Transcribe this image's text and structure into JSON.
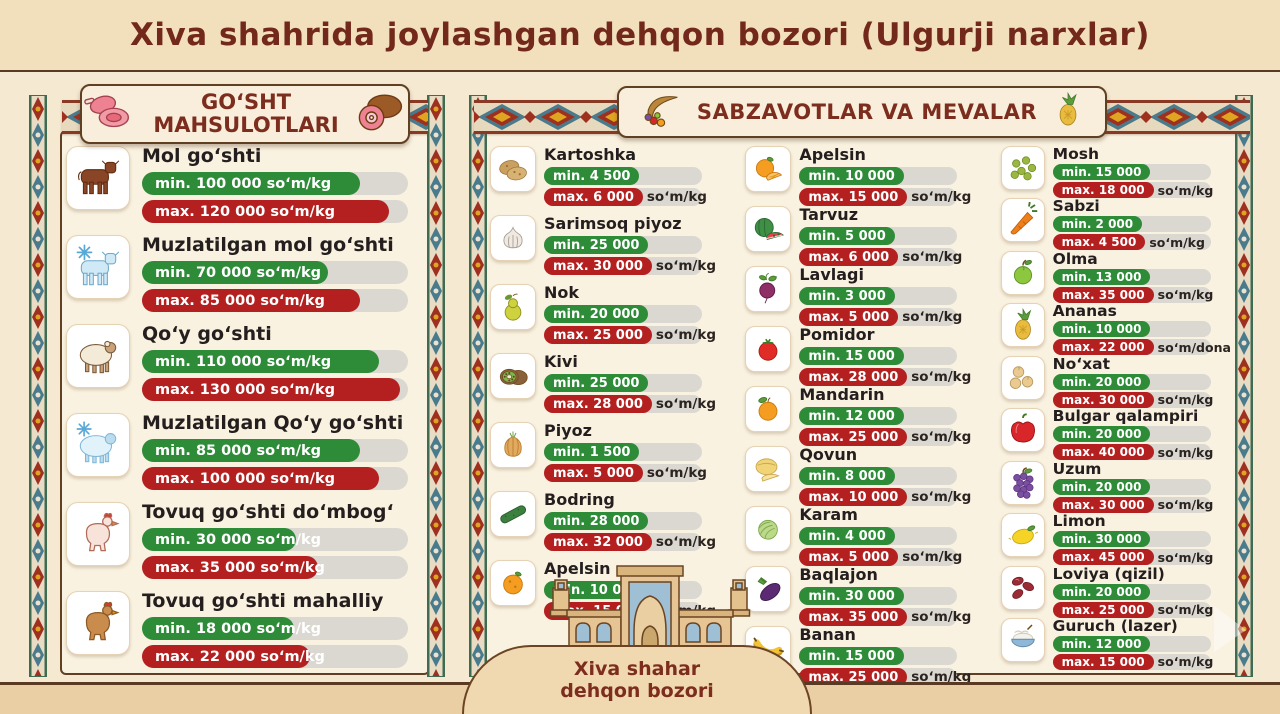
{
  "title": "Xiva shahrida joylashgan dehqon bozori (Ulgurji narxlar)",
  "colors": {
    "green": "#2e8b38",
    "red": "#b3201f",
    "maroon": "#7c2d1e",
    "panel_cream": "#faf2e0"
  },
  "meat_section": {
    "header": {
      "line1": "GOʻSHT",
      "line2": "MAHSULOTLARI"
    },
    "items": [
      {
        "name": "Mol goʻshti",
        "icon": "cow",
        "min": "min. 100 000 soʻm/kg",
        "max": "max. 120 000 soʻm/kg",
        "min_pct": 82,
        "max_pct": 93
      },
      {
        "name": "Muzlatilgan mol goʻshti",
        "icon": "cow-frozen",
        "min": "min. 70 000 soʻm/kg",
        "max": "max. 85 000 soʻm/kg",
        "min_pct": 70,
        "max_pct": 82
      },
      {
        "name": "Qoʻy goʻshti",
        "icon": "sheep",
        "min": "min. 110 000 soʻm/kg",
        "max": "max. 130 000 soʻm/kg",
        "min_pct": 89,
        "max_pct": 97
      },
      {
        "name": "Muzlatilgan Qoʻy goʻshti",
        "icon": "sheep-frozen",
        "min": "min. 85 000 soʻm/kg",
        "max": "max. 100 000 soʻm/kg",
        "min_pct": 82,
        "max_pct": 89
      },
      {
        "name": "Tovuq goʻshti doʻmbogʻ",
        "icon": "chicken-broiler",
        "min": "min. 30 000 soʻm/kg",
        "max": "max. 35 000 soʻm/kg",
        "min_pct": 58,
        "max_pct": 66
      },
      {
        "name": "Tovuq goʻshti mahalliy",
        "icon": "chicken-local",
        "min": "min. 18 000 soʻm/kg",
        "max": "max. 22 000 soʻm/kg",
        "min_pct": 57,
        "max_pct": 63
      }
    ]
  },
  "produce_section": {
    "header": "SABZAVOTLAR VA MEVALAR",
    "columns": [
      {
        "items": [
          {
            "name": "Kartoshka",
            "icon": "potato",
            "min": "min. 4 500",
            "max": "max. 6 000",
            "unit": "soʻm/kg"
          },
          {
            "name": "Sarimsoq piyoz",
            "icon": "garlic",
            "min": "min. 25 000",
            "max": "max. 30 000",
            "unit": "soʻm/kg"
          },
          {
            "name": "Nok",
            "icon": "pear",
            "min": "min. 20 000",
            "max": "max. 25 000",
            "unit": "soʻm/kg"
          },
          {
            "name": "Kivi",
            "icon": "kiwi",
            "min": "min. 25 000",
            "max": "max. 28 000",
            "unit": "soʻm/kg"
          },
          {
            "name": "Piyoz",
            "icon": "onion",
            "min": "min. 1 500",
            "max": "max. 5 000",
            "unit": "soʻm/kg"
          },
          {
            "name": "Bodring",
            "icon": "cucumber",
            "min": "min. 28 000",
            "max": "max. 32 000",
            "unit": "soʻm/kg"
          },
          {
            "name": "Apelsin",
            "icon": "orange",
            "min": "min. 10 000",
            "max": "max. 15 000",
            "unit": "soʻm/kg"
          }
        ]
      },
      {
        "items": [
          {
            "name": "Apelsin",
            "icon": "orange-cut",
            "min": "min. 10 000",
            "max": "max. 15 000",
            "unit": "soʻm/kg"
          },
          {
            "name": "Tarvuz",
            "icon": "watermelon",
            "min": "min. 5 000",
            "max": "max. 6 000",
            "unit": "soʻm/kg"
          },
          {
            "name": "Lavlagi",
            "icon": "beet",
            "min": "min. 3 000",
            "max": "max. 5 000",
            "unit": "soʻm/kg"
          },
          {
            "name": "Pomidor",
            "icon": "tomato",
            "min": "min. 15 000",
            "max": "max. 28 000",
            "unit": "soʻm/kg"
          },
          {
            "name": "Mandarin",
            "icon": "mandarin",
            "min": "min. 12 000",
            "max": "max. 25 000",
            "unit": "soʻm/kg"
          },
          {
            "name": "Qovun",
            "icon": "melon",
            "min": "min. 8 000",
            "max": "max. 10 000",
            "unit": "soʻm/kg"
          },
          {
            "name": "Karam",
            "icon": "cabbage",
            "min": "min. 4 000",
            "max": "max. 5 000",
            "unit": "soʻm/kg"
          },
          {
            "name": "Baqlajon",
            "icon": "eggplant",
            "min": "min. 30 000",
            "max": "max. 35 000",
            "unit": "soʻm/kg"
          },
          {
            "name": "Banan",
            "icon": "banana",
            "min": "min. 15 000",
            "max": "max. 25 000",
            "unit": "soʻm/kg"
          }
        ]
      },
      {
        "items": [
          {
            "name": "Mosh",
            "icon": "mung-beans",
            "min": "min. 15 000",
            "max": "max. 18 000",
            "unit": "soʻm/kg"
          },
          {
            "name": "Sabzi",
            "icon": "carrot",
            "min": "min. 2 000",
            "max": "max. 4 500",
            "unit": "soʻm/kg"
          },
          {
            "name": "Olma",
            "icon": "apple",
            "min": "min. 13 000",
            "max": "max. 35 000",
            "unit": "soʻm/kg"
          },
          {
            "name": "Ananas",
            "icon": "pineapple",
            "min": "min. 10 000",
            "max": "max. 22 000",
            "unit": "soʻm/dona"
          },
          {
            "name": "Noʻxat",
            "icon": "chickpeas",
            "min": "min. 20 000",
            "max": "max. 30 000",
            "unit": "soʻm/kg"
          },
          {
            "name": "Bulgar qalampiri",
            "icon": "bell-pepper",
            "min": "min. 20 000",
            "max": "max. 40 000",
            "unit": "soʻm/kg"
          },
          {
            "name": "Uzum",
            "icon": "grapes",
            "min": "min. 20 000",
            "max": "max. 30 000",
            "unit": "soʻm/kg"
          },
          {
            "name": "Limon",
            "icon": "lemon",
            "min": "min. 30 000",
            "max": "max. 45 000",
            "unit": "soʻm/kg"
          },
          {
            "name": "Loviya (qizil)",
            "icon": "red-beans",
            "min": "min. 20 000",
            "max": "max. 25 000",
            "unit": "soʻm/kg"
          },
          {
            "name": "Guruch (lazer)",
            "icon": "rice",
            "min": "min. 12 000",
            "max": "max. 15 000",
            "unit": "soʻm/kg"
          }
        ]
      }
    ]
  },
  "footer": {
    "line1": "Xiva shahar",
    "line2": "dehqon bozori"
  }
}
